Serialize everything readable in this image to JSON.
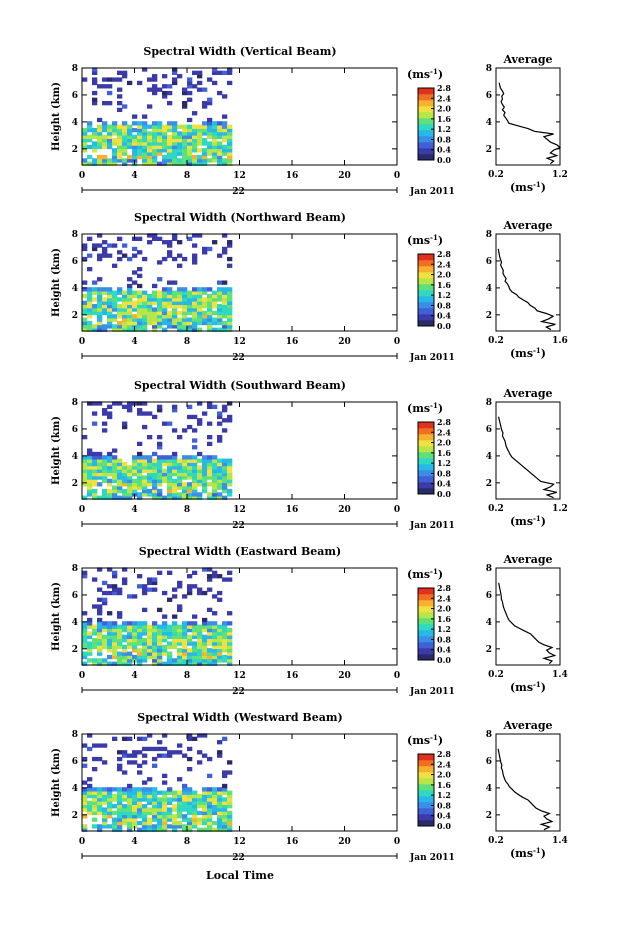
{
  "figure": {
    "x_axis_label": "Local Time",
    "date_label_day": "22",
    "date_label_month": "Jan 2011",
    "average_title": "Average",
    "unit_label": "(ms",
    "unit_exp": "-1",
    "colors": [
      "#2a2a6a",
      "#3a3aa8",
      "#4060d8",
      "#3b8ee8",
      "#27b8e8",
      "#2fd8c0",
      "#5ee07a",
      "#b8e648",
      "#f0e040",
      "#f8b030",
      "#f07020",
      "#e03020"
    ]
  },
  "chart_data": [
    {
      "type": "heatmap",
      "title": "Spectral Width (Vertical Beam)",
      "ylabel": "Height (km)",
      "x_ticks": [
        "0",
        "4",
        "8",
        "12",
        "16",
        "20",
        "0"
      ],
      "y_ticks": [
        "2",
        "4",
        "6",
        "8"
      ],
      "xlim": [
        0,
        24
      ],
      "ylim": [
        0.8,
        8
      ],
      "data_end_hour": 11.5,
      "colorbar_ticks": [
        "0.0",
        "0.4",
        "0.8",
        "1.2",
        "1.6",
        "2.0",
        "2.4",
        "2.8"
      ],
      "colorbar_range": [
        0.0,
        2.8
      ],
      "average": {
        "x_ticks": [
          "0.2",
          "1.2"
        ],
        "xlim": [
          0.2,
          1.2
        ],
        "ylim": [
          0.8,
          8
        ],
        "y_ticks": [
          "2",
          "4",
          "6",
          "8"
        ],
        "height_km": [
          0.9,
          1.1,
          1.3,
          1.5,
          1.7,
          1.9,
          2.1,
          2.3,
          2.5,
          2.7,
          2.9,
          3.1,
          3.3,
          3.5,
          3.7,
          3.9,
          4.1,
          4.3,
          4.5,
          4.7,
          4.9,
          5.1,
          5.3,
          5.5,
          5.7,
          5.9,
          6.1,
          6.3,
          6.5,
          6.7,
          6.9
        ],
        "width": [
          1.05,
          1.1,
          1.0,
          1.15,
          1.05,
          1.1,
          1.2,
          1.15,
          1.05,
          1.0,
          0.95,
          1.1,
          0.8,
          0.7,
          0.55,
          0.4,
          0.38,
          0.35,
          0.32,
          0.34,
          0.3,
          0.33,
          0.3,
          0.28,
          0.3,
          0.29,
          0.32,
          0.3,
          0.27,
          0.26,
          0.25
        ]
      }
    },
    {
      "type": "heatmap",
      "title": "Spectral Width (Northward Beam)",
      "ylabel": "Height (km)",
      "x_ticks": [
        "0",
        "4",
        "8",
        "12",
        "16",
        "20",
        "0"
      ],
      "y_ticks": [
        "2",
        "4",
        "6",
        "8"
      ],
      "xlim": [
        0,
        24
      ],
      "ylim": [
        0.8,
        8
      ],
      "data_end_hour": 11.5,
      "colorbar_ticks": [
        "0.0",
        "0.4",
        "0.8",
        "1.2",
        "1.6",
        "2.0",
        "2.4",
        "2.8"
      ],
      "colorbar_range": [
        0.0,
        2.8
      ],
      "average": {
        "x_ticks": [
          "0.2",
          "1.6"
        ],
        "xlim": [
          0.2,
          1.6
        ],
        "ylim": [
          0.8,
          8
        ],
        "y_ticks": [
          "2",
          "4",
          "6",
          "8"
        ],
        "height_km": [
          0.9,
          1.1,
          1.3,
          1.5,
          1.7,
          1.9,
          2.1,
          2.3,
          2.5,
          2.7,
          2.9,
          3.1,
          3.3,
          3.5,
          3.7,
          3.9,
          4.1,
          4.3,
          4.5,
          4.7,
          4.9,
          5.1,
          5.3,
          5.5,
          5.7,
          5.9,
          6.1,
          6.3,
          6.5,
          6.7,
          6.9
        ],
        "width": [
          1.4,
          1.3,
          1.5,
          1.2,
          1.35,
          1.45,
          1.3,
          1.1,
          1.05,
          0.95,
          0.9,
          0.8,
          0.7,
          0.65,
          0.55,
          0.5,
          0.48,
          0.45,
          0.4,
          0.42,
          0.38,
          0.35,
          0.36,
          0.33,
          0.3,
          0.32,
          0.3,
          0.28,
          0.27,
          0.26,
          0.25
        ]
      }
    },
    {
      "type": "heatmap",
      "title": "Spectral Width (Southward Beam)",
      "ylabel": "Height (km)",
      "x_ticks": [
        "0",
        "4",
        "8",
        "12",
        "16",
        "20",
        "0"
      ],
      "y_ticks": [
        "2",
        "4",
        "6",
        "8"
      ],
      "xlim": [
        0,
        24
      ],
      "ylim": [
        0.8,
        8
      ],
      "data_end_hour": 11.5,
      "colorbar_ticks": [
        "0.0",
        "0.4",
        "0.8",
        "1.2",
        "1.6",
        "2.0",
        "2.4",
        "2.8"
      ],
      "colorbar_range": [
        0.0,
        2.8
      ],
      "average": {
        "x_ticks": [
          "0.2",
          "1.2"
        ],
        "xlim": [
          0.2,
          1.2
        ],
        "ylim": [
          0.8,
          8
        ],
        "y_ticks": [
          "2",
          "4",
          "6",
          "8"
        ],
        "height_km": [
          0.9,
          1.1,
          1.3,
          1.5,
          1.7,
          1.9,
          2.1,
          2.3,
          2.5,
          2.7,
          2.9,
          3.1,
          3.3,
          3.5,
          3.7,
          3.9,
          4.1,
          4.3,
          4.5,
          4.7,
          4.9,
          5.1,
          5.3,
          5.5,
          5.7,
          5.9,
          6.1,
          6.3,
          6.5,
          6.7,
          6.9
        ],
        "width": [
          1.1,
          1.0,
          1.15,
          0.95,
          1.05,
          1.1,
          0.9,
          0.85,
          0.8,
          0.75,
          0.7,
          0.65,
          0.6,
          0.55,
          0.5,
          0.45,
          0.42,
          0.4,
          0.38,
          0.36,
          0.35,
          0.34,
          0.32,
          0.3,
          0.31,
          0.29,
          0.28,
          0.27,
          0.26,
          0.25,
          0.24
        ]
      }
    },
    {
      "type": "heatmap",
      "title": "Spectral Width (Eastward Beam)",
      "ylabel": "Height (km)",
      "x_ticks": [
        "0",
        "4",
        "8",
        "12",
        "16",
        "20",
        "0"
      ],
      "y_ticks": [
        "2",
        "4",
        "6",
        "8"
      ],
      "xlim": [
        0,
        24
      ],
      "ylim": [
        0.8,
        8
      ],
      "data_end_hour": 11.5,
      "colorbar_ticks": [
        "0.0",
        "0.4",
        "0.8",
        "1.2",
        "1.6",
        "2.0",
        "2.4",
        "2.8"
      ],
      "colorbar_range": [
        0.0,
        2.8
      ],
      "average": {
        "x_ticks": [
          "0.2",
          "1.4"
        ],
        "xlim": [
          0.2,
          1.4
        ],
        "ylim": [
          0.8,
          8
        ],
        "y_ticks": [
          "2",
          "4",
          "6",
          "8"
        ],
        "height_km": [
          0.9,
          1.1,
          1.3,
          1.5,
          1.7,
          1.9,
          2.1,
          2.3,
          2.5,
          2.7,
          2.9,
          3.1,
          3.3,
          3.5,
          3.7,
          3.9,
          4.1,
          4.3,
          4.5,
          4.7,
          4.9,
          5.1,
          5.3,
          5.5,
          5.7,
          5.9,
          6.1,
          6.3,
          6.5,
          6.7,
          6.9
        ],
        "width": [
          1.2,
          1.25,
          1.1,
          1.3,
          1.2,
          1.15,
          1.25,
          1.1,
          1.0,
          0.95,
          0.9,
          0.85,
          0.75,
          0.65,
          0.55,
          0.5,
          0.45,
          0.42,
          0.4,
          0.38,
          0.36,
          0.34,
          0.33,
          0.32,
          0.3,
          0.3,
          0.29,
          0.28,
          0.27,
          0.26,
          0.25
        ]
      }
    },
    {
      "type": "heatmap",
      "title": "Spectral Width (Westward Beam)",
      "ylabel": "Height (km)",
      "x_ticks": [
        "0",
        "4",
        "8",
        "12",
        "16",
        "20",
        "0"
      ],
      "y_ticks": [
        "2",
        "4",
        "6",
        "8"
      ],
      "xlim": [
        0,
        24
      ],
      "ylim": [
        0.8,
        8
      ],
      "data_end_hour": 11.5,
      "colorbar_ticks": [
        "0.0",
        "0.4",
        "0.8",
        "1.2",
        "1.6",
        "2.0",
        "2.4",
        "2.8"
      ],
      "colorbar_range": [
        0.0,
        2.8
      ],
      "average": {
        "x_ticks": [
          "0.2",
          "1.4"
        ],
        "xlim": [
          0.2,
          1.4
        ],
        "ylim": [
          0.8,
          8
        ],
        "y_ticks": [
          "2",
          "4",
          "6",
          "8"
        ],
        "height_km": [
          0.9,
          1.1,
          1.3,
          1.5,
          1.7,
          1.9,
          2.1,
          2.3,
          2.5,
          2.7,
          2.9,
          3.1,
          3.3,
          3.5,
          3.7,
          3.9,
          4.1,
          4.3,
          4.5,
          4.7,
          4.9,
          5.1,
          5.3,
          5.5,
          5.7,
          5.9,
          6.1,
          6.3,
          6.5,
          6.7,
          6.9
        ],
        "width": [
          1.1,
          1.2,
          1.05,
          1.25,
          1.15,
          1.1,
          1.2,
          1.05,
          0.95,
          0.9,
          0.85,
          0.8,
          0.7,
          0.62,
          0.55,
          0.5,
          0.45,
          0.42,
          0.38,
          0.36,
          0.34,
          0.33,
          0.32,
          0.3,
          0.31,
          0.29,
          0.28,
          0.27,
          0.26,
          0.25,
          0.24
        ]
      }
    }
  ]
}
